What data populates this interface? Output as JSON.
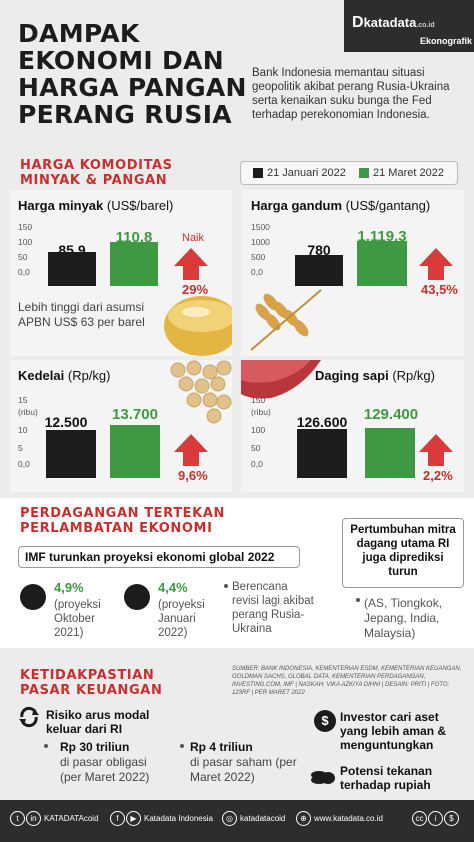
{
  "header": {
    "title_lines": [
      "DAMPAK",
      "EKONOMI DAN",
      "HARGA PANGAN",
      "PERANG RUSIA"
    ],
    "logo": "katadata",
    "logo_suffix": ".co.id",
    "logo_sub": "Ekonografik",
    "intro": "Bank Indonesia memantau situasi geopolitik akibat perang Rusia-Ukraina serta kenaikan suku bunga the Fed terhadap perekonomian Indonesia."
  },
  "commodities": {
    "heading_1": "HARGA KOMODITAS",
    "heading_2": "MINYAK & PANGAN",
    "legend": [
      {
        "label": "21 Januari 2022",
        "color": "#1c1c1c"
      },
      {
        "label": "21 Maret 2022",
        "color": "#3e9a42"
      }
    ],
    "panels": [
      {
        "label": "Harga minyak",
        "unit": "(US$/barel)",
        "axis": [
          "150",
          "100",
          "50",
          "0,0"
        ],
        "jan": "85,9",
        "mar": "110,8",
        "jan_value": 85.9,
        "mar_value": 110.8,
        "axis_max": 150,
        "change": "29%",
        "up_label": "Naik",
        "note": "Lebih tinggi dari asumsi APBN US$ 63 per barel"
      },
      {
        "label": "Harga gandum",
        "unit": "(US$/gantang)",
        "axis": [
          "1500",
          "1000",
          "500",
          "0,0"
        ],
        "jan": "780",
        "mar": "1.119,3",
        "jan_value": 780,
        "mar_value": 1119.3,
        "axis_max": 1500,
        "change": "43,5%"
      },
      {
        "label": "Kedelai",
        "unit": "(Rp/kg)",
        "axis": [
          "15",
          "(ribu)",
          "10",
          "5",
          "0,0"
        ],
        "jan": "12.500",
        "mar": "13.700",
        "jan_value": 12500,
        "mar_value": 13700,
        "axis_max": 15000,
        "change": "9,6%"
      },
      {
        "label": "Daging sapi",
        "unit": "(Rp/kg)",
        "axis": [
          "150",
          "(ribu)",
          "100",
          "50",
          "0,0"
        ],
        "jan": "126.600",
        "mar": "129.400",
        "jan_value": 126600,
        "mar_value": 129400,
        "axis_max": 150000,
        "change": "2,2%"
      }
    ]
  },
  "trade": {
    "heading_1": "PERDAGANGAN TERTEKAN",
    "heading_2": "PERLAMBATAN EKONOMI",
    "imf_box": "IMF turunkan proyeksi ekonomi global 2022",
    "proj_oct_value": "4,9%",
    "proj_oct_label": "(proyeksi Oktober 2021)",
    "proj_jan_value": "4,4%",
    "proj_jan_label": "(proyeksi Januari 2022)",
    "revision": "Berencana revisi lagi akibat perang Rusia-Ukraina",
    "partner_box": "Pertumbuhan mitra dagang utama RI juga diprediksi turun",
    "partners": "(AS, Tiongkok, Jepang, India, Malaysia)"
  },
  "finance": {
    "heading_1": "KETIDAKPASTIAN",
    "heading_2": "PASAR KEUANGAN",
    "sources": "SUMBER: BANK INDONESIA, KEMENTERIAN ESDM, KEMENTERIAN KEUANGAN, GOLDMAN SACHS, GLOBAL DATA, KEMENTERIAN PERDAGANGAN, INVESTING.COM, IMF | NASKAH: VIKA AZKIYA DIHNI | DESAIN: PRITI | FOTO: 123RF | PER MARET 2022",
    "outflow": "Risiko arus modal keluar dari RI",
    "bond_amount": "Rp 30 triliun",
    "bond_text": "di pasar obligasi (per Maret 2022)",
    "stock_amount": "Rp 4 triliun",
    "stock_text": "di pasar saham (per Maret 2022)",
    "investor": "Investor cari aset yang lebih aman & menguntungkan",
    "rupiah": "Potensi tekanan terhadap rupiah"
  },
  "footer": {
    "handle_1": "KATADATAcoid",
    "handle_2": "Katadata Indonesia",
    "handle_3": "katadatacoid",
    "site": "www.katadata.co.id"
  }
}
